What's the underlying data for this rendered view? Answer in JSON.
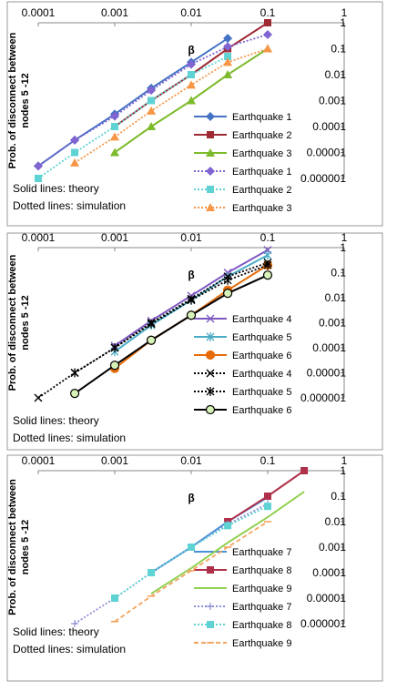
{
  "chart_data": [
    {
      "type": "line",
      "xlabel": "β",
      "ylabel": [
        "Prob. of disconnect between",
        "nodes 5 -12"
      ],
      "notes": [
        "Solid lines: theory",
        "Dotted lines: simulation"
      ],
      "log_x": true,
      "log_y": true,
      "grid": false,
      "legend": "right",
      "xlim": [
        0.0001,
        1
      ],
      "xticks": [
        0.0001,
        0.001,
        0.01,
        0.1,
        1
      ],
      "ylim": [
        1e-06,
        1
      ],
      "yticks": [
        1,
        0.1,
        0.01,
        0.001,
        0.0001,
        1e-05,
        1e-06
      ],
      "x": [
        0.0001,
        0.0003,
        0.001,
        0.003,
        0.01,
        0.03,
        0.1
      ],
      "series": [
        {
          "name": "Earthquake 1",
          "color": "#4472c4",
          "line": "solid",
          "marker": "diamond",
          "values": [
            3e-06,
            3e-05,
            0.0003,
            0.003,
            0.03,
            0.25,
            null
          ]
        },
        {
          "name": "Earthquake 2",
          "color": "#9e2a33",
          "line": "solid",
          "marker": "square",
          "values": [
            null,
            null,
            0.0001,
            0.001,
            0.01,
            0.1,
            1
          ]
        },
        {
          "name": "Earthquake 3",
          "color": "#7dbb2c",
          "line": "solid",
          "marker": "triangle",
          "values": [
            null,
            null,
            1e-05,
            0.0001,
            0.001,
            0.01,
            0.1
          ]
        },
        {
          "name": "Earthquake 1",
          "color": "#8064d2",
          "line": "dotted",
          "marker": "diamond",
          "values": [
            3e-06,
            3e-05,
            0.00025,
            0.0025,
            0.025,
            0.12,
            0.35
          ]
        },
        {
          "name": "Earthquake 2",
          "color": "#5fd3d3",
          "line": "dotted",
          "marker": "square",
          "values": [
            1e-06,
            1e-05,
            0.0001,
            0.001,
            0.01,
            0.05,
            null
          ]
        },
        {
          "name": "Earthquake 3",
          "color": "#f79646",
          "line": "dotted",
          "marker": "triangle",
          "values": [
            null,
            4e-06,
            4e-05,
            0.0004,
            0.004,
            0.03,
            0.1
          ]
        }
      ]
    },
    {
      "type": "line",
      "xlabel": "β",
      "ylabel": [
        "Prob. of disconnect between",
        "nodes 5 -12"
      ],
      "notes": [
        "Solid lines: theory",
        "Dotted lines: simulation"
      ],
      "log_x": true,
      "log_y": true,
      "grid": false,
      "legend": "right",
      "xlim": [
        0.0001,
        1
      ],
      "xticks": [
        0.0001,
        0.001,
        0.01,
        0.1,
        1
      ],
      "ylim": [
        1e-06,
        1
      ],
      "yticks": [
        1,
        0.1,
        0.01,
        0.001,
        0.0001,
        1e-05,
        1e-06
      ],
      "x": [
        0.0001,
        0.0003,
        0.001,
        0.003,
        0.01,
        0.03,
        0.1
      ],
      "series": [
        {
          "name": "Earthquake 4",
          "color": "#7e57c2",
          "line": "solid",
          "marker": "x",
          "values": [
            null,
            null,
            0.00012,
            0.0012,
            0.012,
            0.1,
            0.8
          ]
        },
        {
          "name": "Earthquake 5",
          "color": "#4bacc6",
          "line": "solid",
          "marker": "asterisk",
          "values": [
            null,
            null,
            7e-05,
            0.0008,
            0.008,
            0.07,
            0.5
          ]
        },
        {
          "name": "Earthquake 6",
          "color": "#e46c0a",
          "line": "solid",
          "marker": "circle",
          "values": [
            null,
            null,
            1.5e-05,
            0.0002,
            0.002,
            0.02,
            0.2
          ]
        },
        {
          "name": "Earthquake 4",
          "color": "#000000",
          "line": "dotted",
          "marker": "x",
          "values": [
            1e-06,
            1e-05,
            0.0001,
            0.001,
            0.009,
            0.07,
            0.25
          ]
        },
        {
          "name": "Earthquake 5",
          "color": "#000000",
          "line": "dotted",
          "marker": "asterisk",
          "values": [
            null,
            1e-05,
            0.0001,
            0.0009,
            0.008,
            0.05,
            0.2
          ]
        },
        {
          "name": "Earthquake 6",
          "color": "#000000",
          "line": "solid",
          "marker": "circle",
          "marker_fill": "#d7f2b8",
          "values": [
            null,
            1.5e-06,
            2e-05,
            0.0002,
            0.002,
            0.015,
            0.08
          ]
        }
      ]
    },
    {
      "type": "line",
      "xlabel": "β",
      "ylabel": [
        "Prob. of disconnect between",
        "nodes 5 -12"
      ],
      "notes": [
        "Solid lines: theory",
        "Dotted lines: simulation"
      ],
      "log_x": true,
      "log_y": true,
      "grid": false,
      "legend": "right",
      "xlim": [
        0.0001,
        1
      ],
      "xticks": [
        0.0001,
        0.001,
        0.01,
        0.1,
        1
      ],
      "ylim": [
        1e-06,
        1
      ],
      "yticks": [
        1,
        0.1,
        0.01,
        0.001,
        0.0001,
        1e-05,
        1e-06
      ],
      "x": [
        0.0003,
        0.001,
        0.003,
        0.01,
        0.03,
        0.1,
        0.3
      ],
      "series": [
        {
          "name": "Earthquake 7",
          "color": "#4a90d9",
          "line": "solid",
          "marker": "none",
          "values": [
            null,
            null,
            0.0001,
            0.001,
            0.01,
            0.09,
            null
          ]
        },
        {
          "name": "Earthquake 8",
          "color": "#b0304a",
          "line": "solid",
          "marker": "square",
          "values": [
            null,
            null,
            null,
            null,
            0.01,
            0.1,
            1
          ]
        },
        {
          "name": "Earthquake 9",
          "color": "#92d050",
          "line": "solid",
          "marker": "none",
          "values": [
            null,
            null,
            1.5e-05,
            0.00015,
            0.0015,
            0.015,
            0.15
          ]
        },
        {
          "name": "Earthquake 7",
          "color": "#8f8fd8",
          "line": "dotted",
          "marker": "plus",
          "values": [
            1e-06,
            1e-05,
            0.0001,
            0.001,
            0.008,
            0.05,
            null
          ]
        },
        {
          "name": "Earthquake 8",
          "color": "#5fd3d3",
          "line": "dotted",
          "marker": "square",
          "values": [
            null,
            1e-05,
            0.0001,
            0.001,
            0.007,
            0.04,
            null
          ]
        },
        {
          "name": "Earthquake 9",
          "color": "#f4a460",
          "line": "dashed",
          "marker": "dash",
          "values": [
            null,
            1.2e-06,
            1.2e-05,
            0.00012,
            0.001,
            0.01,
            null
          ]
        }
      ]
    }
  ]
}
